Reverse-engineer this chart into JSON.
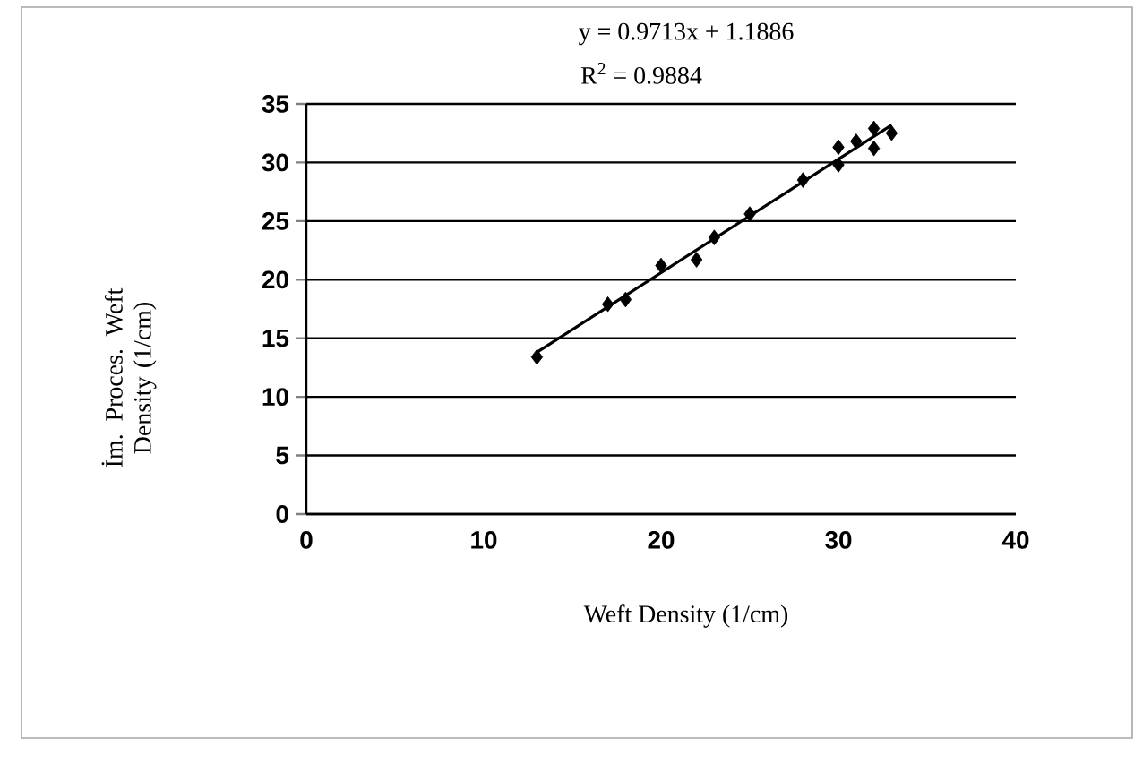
{
  "chart_data": {
    "type": "scatter",
    "xlabel": "Weft Density (1/cm)",
    "ylabel": "İm. Proces. Weft Density (1/cm)",
    "annotations": [
      "y = 0.9713x + 1.1886",
      "R$^{2}$ = 0.9884"
    ],
    "series": [
      {
        "type": "scatter",
        "color": "#000000",
        "marker": "diamond",
        "x": [
          13,
          17,
          18,
          20,
          22,
          23,
          25,
          28,
          30,
          30,
          31,
          32,
          32,
          33
        ],
        "values": [
          13.4,
          17.9,
          18.3,
          21.2,
          21.7,
          23.6,
          25.6,
          28.5,
          29.8,
          31.3,
          31.8,
          31.2,
          32.9,
          32.5
        ]
      },
      {
        "type": "line",
        "color": "#000000",
        "marker": "none",
        "line_style": "solid",
        "x": [
          13,
          33
        ],
        "values": [
          13.8,
          33.2
        ]
      }
    ],
    "xlim": [
      0,
      40
    ],
    "ylim": [
      0,
      35
    ],
    "xticks": [
      0,
      10,
      20,
      30,
      40
    ],
    "yticks": [
      0,
      5,
      10,
      15,
      20,
      25,
      30,
      35
    ],
    "grid": "y"
  }
}
